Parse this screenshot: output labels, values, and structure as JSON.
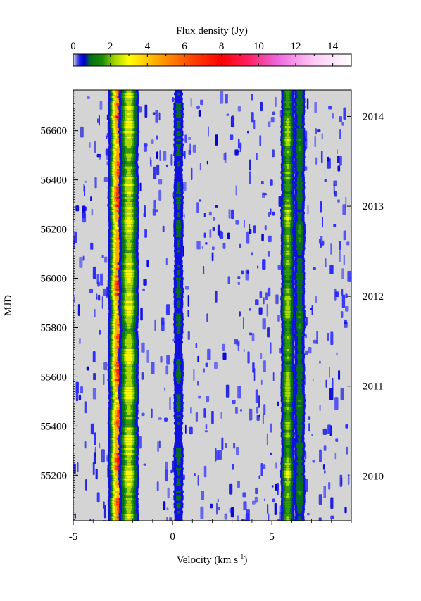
{
  "chart_data": {
    "type": "heatmap",
    "title": "",
    "colorbar": {
      "label": "Flux density (Jy)",
      "range": [
        0,
        15
      ],
      "ticks": [
        0,
        2,
        4,
        6,
        8,
        10,
        12,
        14
      ],
      "ticks_text": [
        "0",
        "2",
        "4",
        "6",
        "8",
        "10",
        "12",
        "14"
      ],
      "placement": "top",
      "colormap": [
        {
          "v": 0.0,
          "color": "#d4d4d4"
        },
        {
          "v": 0.35,
          "color": "#1a1aee"
        },
        {
          "v": 0.6,
          "color": "#0000cc"
        },
        {
          "v": 0.9,
          "color": "#006b1f"
        },
        {
          "v": 1.6,
          "color": "#1f8f00"
        },
        {
          "v": 2.2,
          "color": "#9fd400"
        },
        {
          "v": 3.0,
          "color": "#ffff00"
        },
        {
          "v": 4.5,
          "color": "#ffaa00"
        },
        {
          "v": 6.5,
          "color": "#ff4000"
        },
        {
          "v": 8.0,
          "color": "#ff0000"
        },
        {
          "v": 9.5,
          "color": "#ff2266"
        },
        {
          "v": 11.0,
          "color": "#ee66dd"
        },
        {
          "v": 13.0,
          "color": "#ffccf5"
        },
        {
          "v": 15.0,
          "color": "#ffffff"
        }
      ]
    },
    "x_axis": {
      "label": "Velocity (km s",
      "label_sup": "-1",
      "label_suffix": ")",
      "range": [
        -5,
        9
      ],
      "ticks": [
        -5,
        0,
        5
      ],
      "ticks_text": [
        "-5",
        "0",
        "5"
      ]
    },
    "y_axis": {
      "label": "MJD",
      "range": [
        55015,
        56765
      ],
      "ticks": [
        55200,
        55400,
        55600,
        55800,
        56000,
        56200,
        56400,
        56600
      ],
      "ticks_text": [
        "55200",
        "55400",
        "55600",
        "55800",
        "56000",
        "56200",
        "56400",
        "56600"
      ]
    },
    "y2_axis": {
      "ticks": [
        55197,
        55562,
        55927,
        56293,
        56658
      ],
      "ticks_text": [
        "2010",
        "2011",
        "2012",
        "2013",
        "2014"
      ]
    },
    "features": [
      {
        "velocity": -2.7,
        "peak_flux": 8.0,
        "width": 0.28
      },
      {
        "velocity": -2.2,
        "peak_flux": 3.5,
        "width": 0.3
      },
      {
        "velocity": 0.3,
        "peak_flux": 1.2,
        "width": 0.2
      },
      {
        "velocity": 5.8,
        "peak_flux": 2.8,
        "width": 0.22
      },
      {
        "velocity": 6.4,
        "peak_flux": 1.6,
        "width": 0.2
      }
    ],
    "background_color": "#d4d4d4",
    "grid": false
  }
}
